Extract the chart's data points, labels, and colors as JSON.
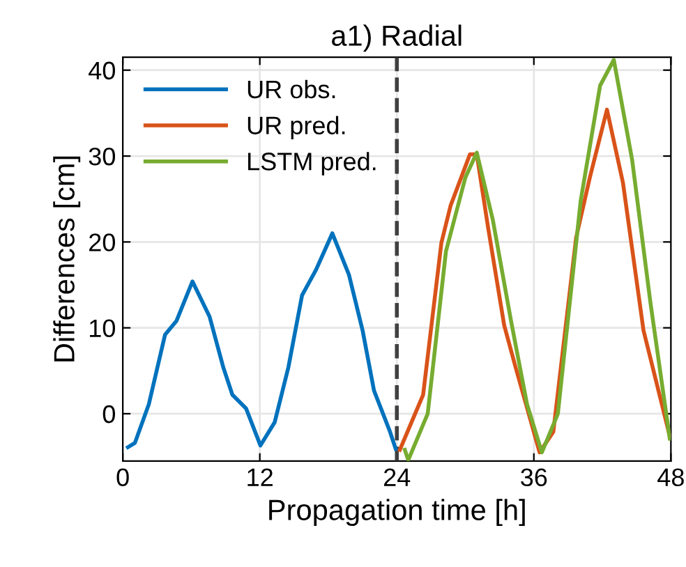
{
  "chart_data": {
    "type": "line",
    "title": "a1) Radial",
    "xlabel": "Propagation time [h]",
    "ylabel": "Differences [cm]",
    "xlim": [
      0,
      48
    ],
    "xticks": [
      0,
      12,
      24,
      36,
      48
    ],
    "ylim": [
      -5.5,
      41.5
    ],
    "yticks": [
      0,
      10,
      20,
      30,
      40
    ],
    "grid": true,
    "legend": "top left",
    "line_style": "solid",
    "marker": "none",
    "ref_lines": [
      {
        "axis": "x",
        "value": 24,
        "color": "#404040",
        "line_style": "dashed"
      }
    ],
    "series": [
      {
        "name": "UR obs.",
        "color": "#0072bd",
        "x": [
          0.45,
          1.06,
          2.28,
          3.7,
          4.7,
          6.1,
          7.6,
          8.8,
          9.6,
          10.8,
          12.05,
          13.3,
          14.5,
          15.7,
          16.9,
          18.35,
          19.8,
          21.0,
          22.0,
          23.4,
          23.9
        ],
        "values": [
          -3.9,
          -3.4,
          1.1,
          9.2,
          10.8,
          15.4,
          11.3,
          5.4,
          2.2,
          0.6,
          -3.7,
          -1.0,
          5.4,
          13.8,
          16.7,
          21.0,
          16.2,
          9.7,
          2.7,
          -2.1,
          -4.1
        ]
      },
      {
        "name": "UR pred.",
        "color": "#d95319",
        "x": [
          24.26,
          26.3,
          27.9,
          28.7,
          30.4,
          31.0,
          32.0,
          33.4,
          34.4,
          36.5,
          37.7,
          39.7,
          40.9,
          42.4,
          43.8,
          45.6,
          47.9
        ],
        "values": [
          -4.2,
          2.2,
          19.9,
          24.2,
          30.2,
          30.2,
          21.6,
          10.3,
          5.4,
          -4.5,
          -2.1,
          20.5,
          27.5,
          35.4,
          26.9,
          9.7,
          -2.6
        ]
      },
      {
        "name": "LSTM pred.",
        "color": "#77ac30",
        "x": [
          24.7,
          25.0,
          26.7,
          28.3,
          30.0,
          31.0,
          32.4,
          34.0,
          35.4,
          36.7,
          38.1,
          40.1,
          41.8,
          43.0,
          44.6,
          46.2,
          47.9
        ],
        "values": [
          -4.2,
          -5.4,
          0.0,
          18.9,
          27.5,
          30.4,
          22.6,
          10.8,
          1.1,
          -4.5,
          0.0,
          24.8,
          38.2,
          41.2,
          29.6,
          13.0,
          -2.9
        ]
      }
    ]
  }
}
